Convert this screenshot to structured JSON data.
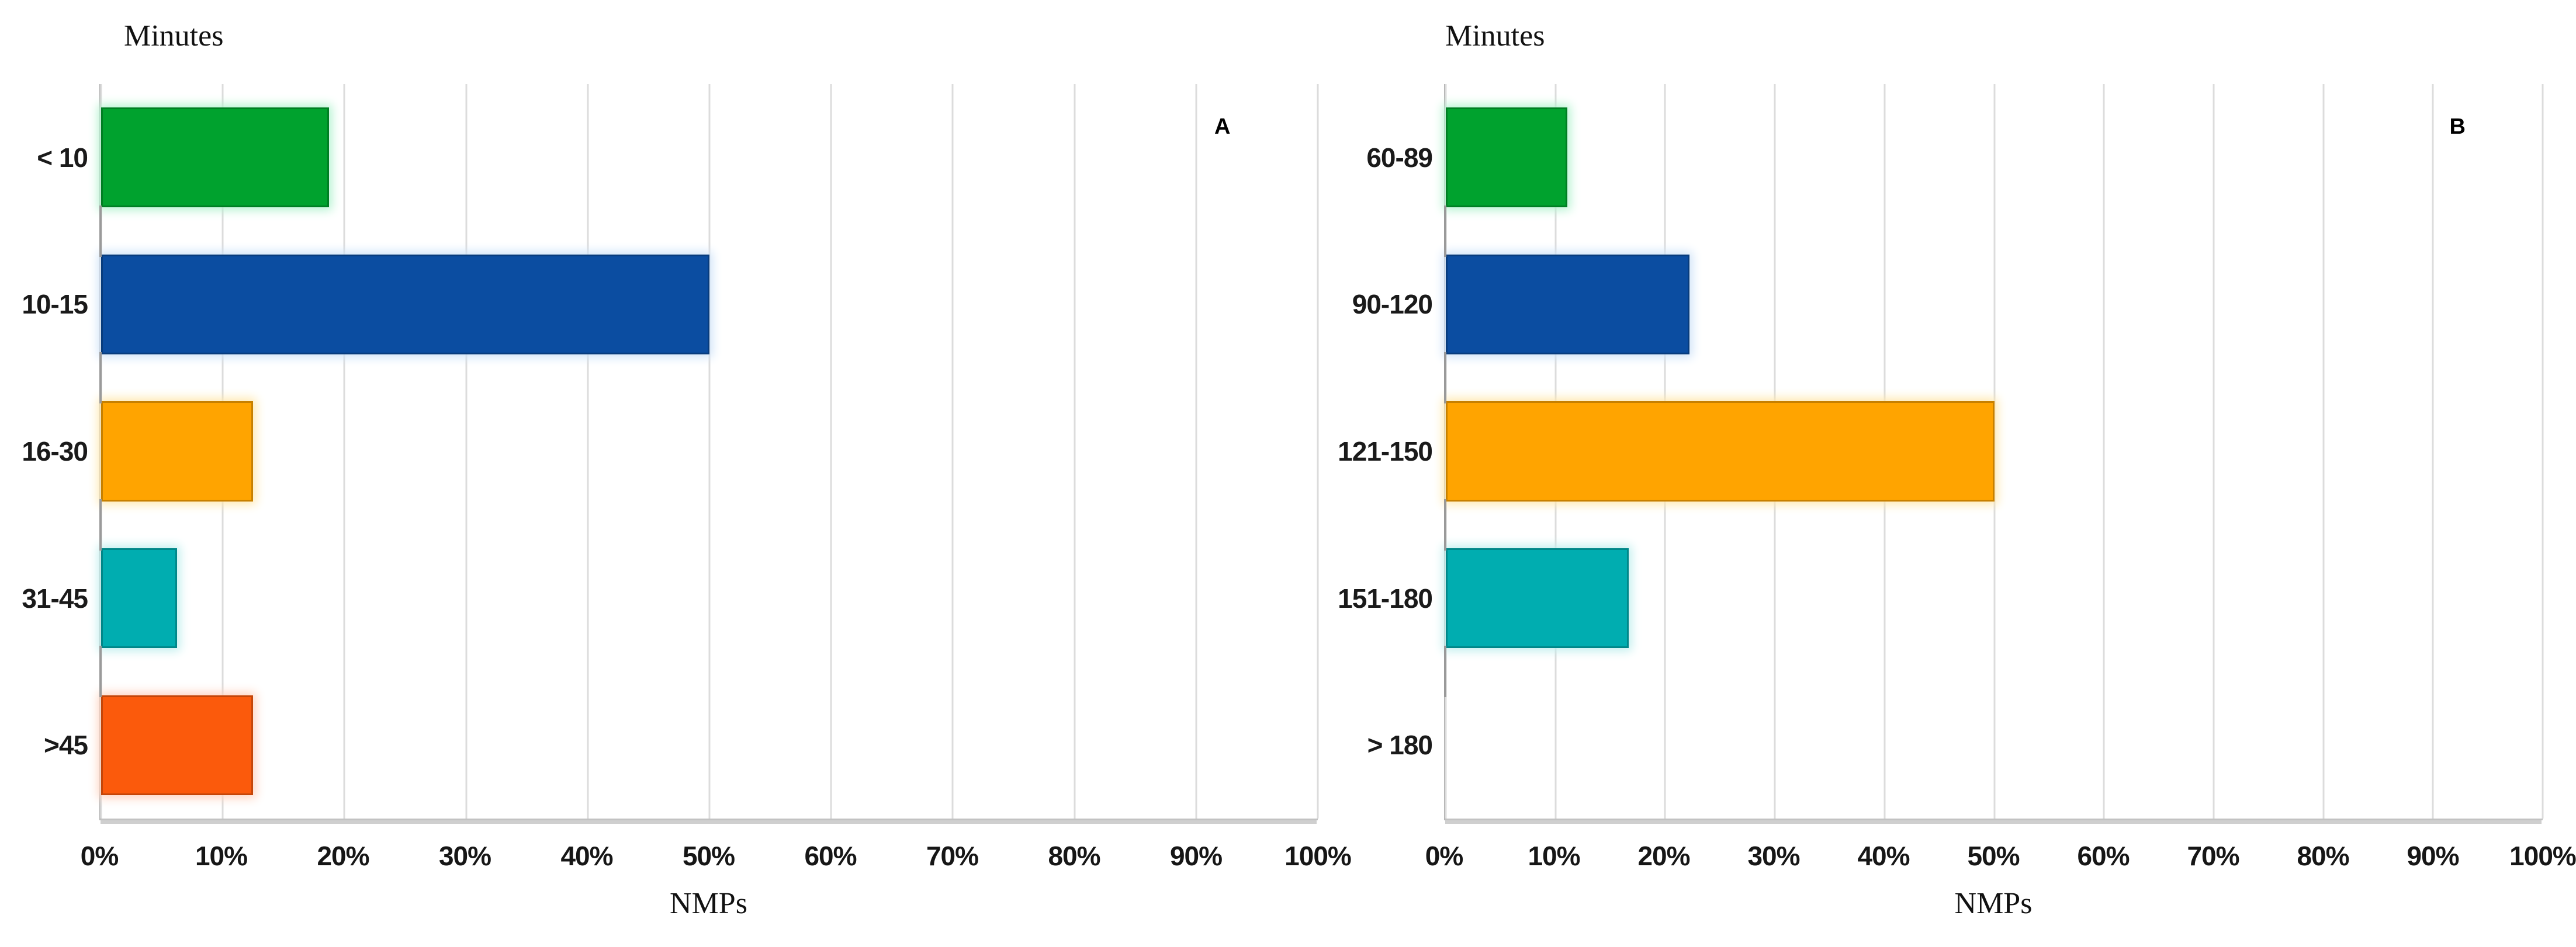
{
  "page": {
    "background": "#ffffff"
  },
  "chart_data": [
    {
      "type": "bar",
      "orientation": "horizontal",
      "panel_label": "A",
      "title": "Minutes",
      "xlabel": "NMPs",
      "categories": [
        "< 10",
        "10-15",
        "16-30",
        "31-45",
        ">45"
      ],
      "values": [
        18.75,
        50,
        12.5,
        6.25,
        12.5
      ],
      "unit": "%",
      "xlim": [
        0,
        100
      ],
      "x_ticks": [
        "0%",
        "10%",
        "20%",
        "30%",
        "40%",
        "50%",
        "60%",
        "70%",
        "80%",
        "90%",
        "100%"
      ],
      "grid": "vertical",
      "legend": "none",
      "colors": [
        "#00a22e",
        "#0b4da1",
        "#ffa400",
        "#00adb0",
        "#fb5a0c"
      ],
      "glow_colors": [
        "#b4f3d0",
        "#cfe3f8",
        "#ffe8ae",
        "#c0efee",
        "#ffd4c0"
      ]
    },
    {
      "type": "bar",
      "orientation": "horizontal",
      "panel_label": "B",
      "title": "Minutes",
      "xlabel": "NMPs",
      "categories": [
        "60-89",
        "90-120",
        "121-150",
        "151-180",
        "> 180"
      ],
      "values": [
        11.1,
        22.2,
        50,
        16.7,
        0
      ],
      "unit": "%",
      "xlim": [
        0,
        100
      ],
      "x_ticks": [
        "0%",
        "10%",
        "20%",
        "30%",
        "40%",
        "50%",
        "60%",
        "70%",
        "80%",
        "90%",
        "100%"
      ],
      "grid": "vertical",
      "legend": "none",
      "colors": [
        "#00a22e",
        "#0b4da1",
        "#ffa400",
        "#00adb0",
        "#fb5a0c"
      ],
      "glow_colors": [
        "#b4f3d0",
        "#cfe3f8",
        "#ffe8ae",
        "#c0efee",
        "#ffd4c0"
      ]
    }
  ]
}
